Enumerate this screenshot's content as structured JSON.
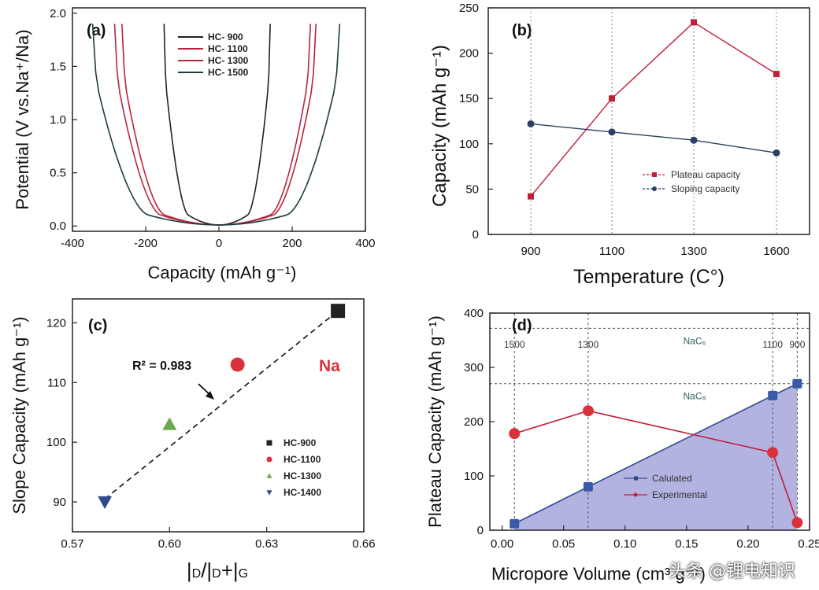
{
  "watermark": "头条 @锂电知识",
  "chart_data": [
    {
      "panel": "(a)",
      "type": "line",
      "xlabel": "Capacity (mAh g⁻¹)",
      "ylabel": "Potential (V vs.Na⁺/Na)",
      "xlim": [
        -400,
        400
      ],
      "ylim": [
        -0.05,
        2.05
      ],
      "xticks": [
        "-400",
        "-200",
        "0",
        "200",
        "400"
      ],
      "yticks": [
        "0.0",
        "0.5",
        "1.0",
        "1.5",
        "2.0"
      ],
      "legend_position": "top-center",
      "series": [
        {
          "name": "HC- 900",
          "color": "#222222",
          "discharge_end": -150,
          "charge_end": 140
        },
        {
          "name": "HC- 1100",
          "color": "#c0203a",
          "discharge_end": -265,
          "charge_end": 265
        },
        {
          "name": "HC- 1300",
          "color": "#b02a40",
          "discharge_end": -285,
          "charge_end": 250
        },
        {
          "name": "HC- 1500",
          "color": "#1f3a40",
          "discharge_end": -345,
          "charge_end": 330
        }
      ]
    },
    {
      "panel": "(b)",
      "type": "line",
      "xlabel": "Temperature (C°)",
      "ylabel": "Capacity (mAh g⁻¹)",
      "categories": [
        "900",
        "1100",
        "1300",
        "1600"
      ],
      "xticks": [
        "900",
        "1100",
        "1300",
        "1600"
      ],
      "yticks": [
        "0",
        "50",
        "100",
        "150",
        "200",
        "250"
      ],
      "ylim": [
        0,
        250
      ],
      "legend_position": "right-center",
      "series": [
        {
          "name": "Plateau capacity",
          "color": "#c0203a",
          "values": [
            42,
            150,
            234,
            177
          ]
        },
        {
          "name": "Sloping capacity",
          "color": "#2a3f63",
          "values": [
            122,
            113,
            104,
            90
          ]
        }
      ]
    },
    {
      "panel": "(c)",
      "type": "scatter",
      "xlabel": "ID/ID+IG",
      "ylabel": "Slope Capacity (mAh g⁻¹)",
      "xlim": [
        0.57,
        0.66
      ],
      "ylim": [
        85,
        124
      ],
      "xticks": [
        "0.57",
        "0.60",
        "0.63",
        "0.66"
      ],
      "yticks": [
        "90",
        "100",
        "110",
        "120"
      ],
      "annotation": "R² = 0.983",
      "element_label": "Na",
      "fit_line": {
        "x": [
          0.58,
          0.652
        ],
        "y": [
          90.5,
          122
        ]
      },
      "legend_position": "bottom-right",
      "series": [
        {
          "name": "HC-900",
          "x": 0.652,
          "y": 122,
          "color": "#222222",
          "marker": "square"
        },
        {
          "name": "HC-1100",
          "x": 0.621,
          "y": 113,
          "color": "#d9323a",
          "marker": "circle"
        },
        {
          "name": "HC-1300",
          "x": 0.6,
          "y": 103,
          "color": "#6aa84f",
          "marker": "triangle-up"
        },
        {
          "name": "HC-1400",
          "x": 0.58,
          "y": 90,
          "color": "#2e4a8a",
          "marker": "triangle-down"
        }
      ]
    },
    {
      "panel": "(d)",
      "type": "line",
      "xlabel": "Micropore Volume (cm³ g⁻¹)",
      "ylabel": "Plateau Capacity (mAh g⁻¹)",
      "xlim": [
        -0.01,
        0.25
      ],
      "ylim": [
        0,
        400
      ],
      "xticks": [
        "0.00",
        "0.05",
        "0.10",
        "0.15",
        "0.20",
        "0.25"
      ],
      "yticks": [
        "0",
        "100",
        "200",
        "300",
        "400"
      ],
      "reference_lines": [
        {
          "label": "NaC₆",
          "y": 372
        },
        {
          "label": "NaC₈",
          "y": 270
        }
      ],
      "sample_lines": [
        {
          "label": "1500",
          "x": 0.01
        },
        {
          "label": "1300",
          "x": 0.07
        },
        {
          "label": "1100",
          "x": 0.22
        },
        {
          "label": "900",
          "x": 0.24
        }
      ],
      "legend_position": "bottom-center",
      "series": [
        {
          "name": "Calulated",
          "color": "#2e4a8a",
          "x": [
            0.01,
            0.07,
            0.22,
            0.24
          ],
          "values": [
            12,
            80,
            248,
            270
          ]
        },
        {
          "name": "Experimental",
          "color": "#c0203a",
          "x": [
            0.01,
            0.07,
            0.22,
            0.24
          ],
          "values": [
            178,
            220,
            143,
            14
          ]
        }
      ]
    }
  ]
}
